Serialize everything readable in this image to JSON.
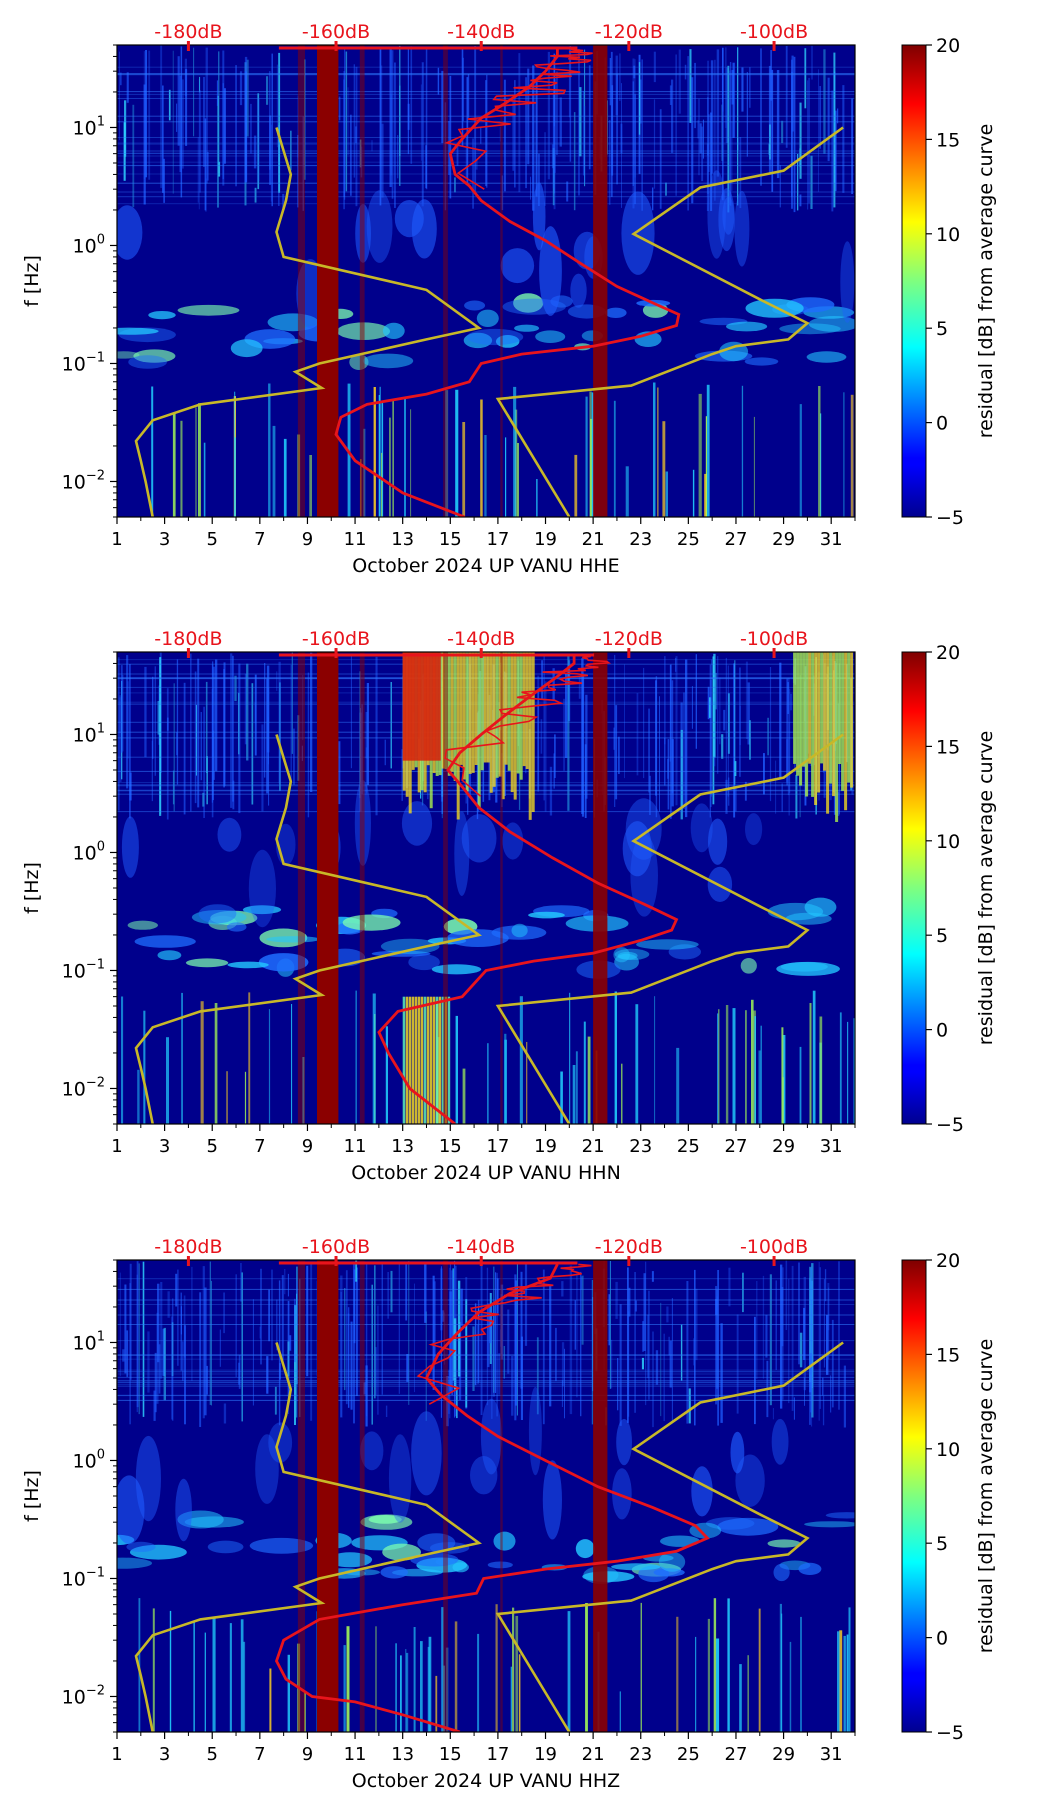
{
  "colors": {
    "red_annotation": "#e8141c",
    "yellow_curve": "#c8b828",
    "background": "#00008c"
  },
  "colorbar": {
    "label": "residual [dB] from average curve",
    "ticks": [
      "20",
      "15",
      "10",
      "5",
      "0",
      "−5"
    ],
    "values": [
      20,
      15,
      10,
      5,
      0,
      -5
    ],
    "range": [
      -5,
      20
    ],
    "colormap": "jet"
  },
  "top_db_labels": [
    "-180dB",
    "-160dB",
    "-140dB",
    "-120dB",
    "-100dB"
  ],
  "y_axis": {
    "label": "f [Hz]",
    "ticks": [
      {
        "base": "10",
        "exp": "1",
        "value": 10
      },
      {
        "base": "10",
        "exp": "0",
        "value": 1
      },
      {
        "base": "10",
        "exp": "−1",
        "value": 0.1
      },
      {
        "base": "10",
        "exp": "−2",
        "value": 0.01
      }
    ],
    "range": [
      0.005,
      50
    ]
  },
  "x_axis": {
    "ticks": [
      "1",
      "3",
      "5",
      "7",
      "9",
      "11",
      "13",
      "15",
      "17",
      "19",
      "21",
      "23",
      "25",
      "27",
      "29",
      "31"
    ],
    "range": [
      1,
      32
    ]
  },
  "chart_data": [
    {
      "type": "heatmap",
      "channel": "HHE",
      "xlabel": "October 2024 UP VANU  HHE",
      "ylabel": "f [Hz]",
      "xlim": [
        1,
        32
      ],
      "ylim": [
        0.005,
        50
      ],
      "top_labels": [
        "-180dB",
        "-160dB",
        "-140dB",
        "-120dB",
        "-100dB"
      ],
      "red_curve": [
        [
          15.6,
          0.005
        ],
        [
          13,
          0.008
        ],
        [
          11,
          0.015
        ],
        [
          10.2,
          0.025
        ],
        [
          10.4,
          0.035
        ],
        [
          11.5,
          0.045
        ],
        [
          14,
          0.055
        ],
        [
          15.8,
          0.07
        ],
        [
          16.3,
          0.1
        ],
        [
          18,
          0.12
        ],
        [
          21,
          0.14
        ],
        [
          23,
          0.17
        ],
        [
          24.5,
          0.21
        ],
        [
          24.6,
          0.26
        ],
        [
          23.6,
          0.32
        ],
        [
          22,
          0.45
        ],
        [
          20.5,
          0.7
        ],
        [
          19,
          1.1
        ],
        [
          17.5,
          1.6
        ],
        [
          16.3,
          2.4
        ],
        [
          15.8,
          3.2
        ],
        [
          15.2,
          4
        ],
        [
          15,
          6
        ],
        [
          15.5,
          8
        ],
        [
          16.3,
          12
        ],
        [
          17.3,
          16
        ],
        [
          18.3,
          22
        ],
        [
          19,
          30
        ],
        [
          19.5,
          40
        ],
        [
          19.5,
          47
        ]
      ],
      "yellow_curve": [
        [
          2.5,
          0.005
        ],
        [
          2.2,
          0.01
        ],
        [
          2,
          0.015
        ],
        [
          1.8,
          0.022
        ],
        [
          2.5,
          0.033
        ],
        [
          4.5,
          0.045
        ],
        [
          9.6,
          0.062
        ],
        [
          8.5,
          0.085
        ],
        [
          9.5,
          0.1
        ],
        [
          14,
          0.16
        ],
        [
          16.2,
          0.2
        ],
        [
          14,
          0.42
        ],
        [
          8,
          0.8
        ],
        [
          7.7,
          1.3
        ],
        [
          8.1,
          2.4
        ],
        [
          8.3,
          4
        ],
        [
          7.7,
          10
        ]
      ],
      "yellow_curve_right": [
        [
          20,
          0.005
        ],
        [
          17,
          0.05
        ],
        [
          22.6,
          0.065
        ],
        [
          26,
          0.12
        ],
        [
          27,
          0.14
        ],
        [
          29.2,
          0.16
        ],
        [
          30,
          0.22
        ],
        [
          28,
          0.35
        ],
        [
          22.7,
          1.25
        ],
        [
          25.5,
          3.1
        ],
        [
          29,
          4.3
        ],
        [
          31.5,
          10
        ]
      ]
    },
    {
      "type": "heatmap",
      "channel": "HHN",
      "xlabel": "October 2024 UP VANU  HHN",
      "ylabel": "f [Hz]",
      "xlim": [
        1,
        32
      ],
      "ylim": [
        0.005,
        50
      ],
      "top_labels": [
        "-180dB",
        "-160dB",
        "-140dB",
        "-120dB",
        "-100dB"
      ],
      "red_curve": [
        [
          15.2,
          0.005
        ],
        [
          13.3,
          0.01
        ],
        [
          12.4,
          0.02
        ],
        [
          12,
          0.03
        ],
        [
          12.8,
          0.045
        ],
        [
          15.5,
          0.06
        ],
        [
          16.5,
          0.1
        ],
        [
          18.5,
          0.12
        ],
        [
          21,
          0.14
        ],
        [
          23,
          0.18
        ],
        [
          24.3,
          0.22
        ],
        [
          24.5,
          0.27
        ],
        [
          23.2,
          0.36
        ],
        [
          21.2,
          0.55
        ],
        [
          19.3,
          0.9
        ],
        [
          17.5,
          1.5
        ],
        [
          16.2,
          2.4
        ],
        [
          15.5,
          3.6
        ],
        [
          14.9,
          5
        ],
        [
          15.4,
          7
        ],
        [
          16.3,
          10
        ],
        [
          17.2,
          14
        ],
        [
          18.2,
          20
        ],
        [
          19.4,
          30
        ],
        [
          20.2,
          40
        ],
        [
          20.2,
          47
        ]
      ],
      "yellow_curve": [
        [
          2.5,
          0.005
        ],
        [
          2.2,
          0.01
        ],
        [
          2,
          0.015
        ],
        [
          1.8,
          0.022
        ],
        [
          2.5,
          0.033
        ],
        [
          4.5,
          0.045
        ],
        [
          9.6,
          0.062
        ],
        [
          8.5,
          0.085
        ],
        [
          9.5,
          0.1
        ],
        [
          14,
          0.16
        ],
        [
          16.2,
          0.2
        ],
        [
          14,
          0.42
        ],
        [
          8,
          0.8
        ],
        [
          7.7,
          1.3
        ],
        [
          8.1,
          2.4
        ],
        [
          8.3,
          4
        ],
        [
          7.7,
          10
        ]
      ],
      "yellow_curve_right": [
        [
          20,
          0.005
        ],
        [
          17,
          0.05
        ],
        [
          22.6,
          0.065
        ],
        [
          26,
          0.12
        ],
        [
          27,
          0.14
        ],
        [
          29.2,
          0.16
        ],
        [
          30,
          0.22
        ],
        [
          28,
          0.35
        ],
        [
          22.7,
          1.25
        ],
        [
          25.5,
          3.1
        ],
        [
          29,
          4.3
        ],
        [
          31.5,
          10
        ]
      ]
    },
    {
      "type": "heatmap",
      "channel": "HHZ",
      "xlabel": "October 2024 UP VANU  HHZ",
      "ylabel": "f [Hz]",
      "xlim": [
        1,
        32
      ],
      "ylim": [
        0.005,
        50
      ],
      "top_labels": [
        "-180dB",
        "-160dB",
        "-140dB",
        "-120dB",
        "-100dB"
      ],
      "red_curve": [
        [
          15.4,
          0.005
        ],
        [
          13,
          0.007
        ],
        [
          11,
          0.009
        ],
        [
          9.2,
          0.01
        ],
        [
          8.1,
          0.014
        ],
        [
          7.7,
          0.02
        ],
        [
          8,
          0.03
        ],
        [
          9.5,
          0.045
        ],
        [
          13,
          0.06
        ],
        [
          16.1,
          0.075
        ],
        [
          16.4,
          0.1
        ],
        [
          19,
          0.12
        ],
        [
          22,
          0.14
        ],
        [
          24.5,
          0.17
        ],
        [
          25.8,
          0.22
        ],
        [
          25.3,
          0.28
        ],
        [
          23.5,
          0.4
        ],
        [
          21.2,
          0.6
        ],
        [
          19,
          1
        ],
        [
          17,
          1.6
        ],
        [
          15.7,
          2.4
        ],
        [
          14.6,
          3.6
        ],
        [
          14,
          5
        ],
        [
          14.5,
          8
        ],
        [
          15.3,
          12
        ],
        [
          16.2,
          18
        ],
        [
          17.5,
          26
        ],
        [
          19.2,
          35
        ],
        [
          19.5,
          46
        ]
      ],
      "yellow_curve": [
        [
          2.5,
          0.005
        ],
        [
          2.2,
          0.01
        ],
        [
          2,
          0.015
        ],
        [
          1.8,
          0.022
        ],
        [
          2.5,
          0.033
        ],
        [
          4.5,
          0.045
        ],
        [
          9.6,
          0.062
        ],
        [
          8.5,
          0.085
        ],
        [
          9.5,
          0.1
        ],
        [
          14,
          0.16
        ],
        [
          16.2,
          0.2
        ],
        [
          14,
          0.42
        ],
        [
          8,
          0.8
        ],
        [
          7.7,
          1.3
        ],
        [
          8.1,
          2.4
        ],
        [
          8.3,
          4
        ],
        [
          7.7,
          10
        ]
      ],
      "yellow_curve_right": [
        [
          20,
          0.005
        ],
        [
          17,
          0.05
        ],
        [
          22.6,
          0.065
        ],
        [
          26,
          0.12
        ],
        [
          27,
          0.14
        ],
        [
          29.2,
          0.16
        ],
        [
          30,
          0.22
        ],
        [
          28,
          0.35
        ],
        [
          22.7,
          1.25
        ],
        [
          25.5,
          3.1
        ],
        [
          29,
          4.3
        ],
        [
          31.5,
          10
        ]
      ]
    }
  ]
}
